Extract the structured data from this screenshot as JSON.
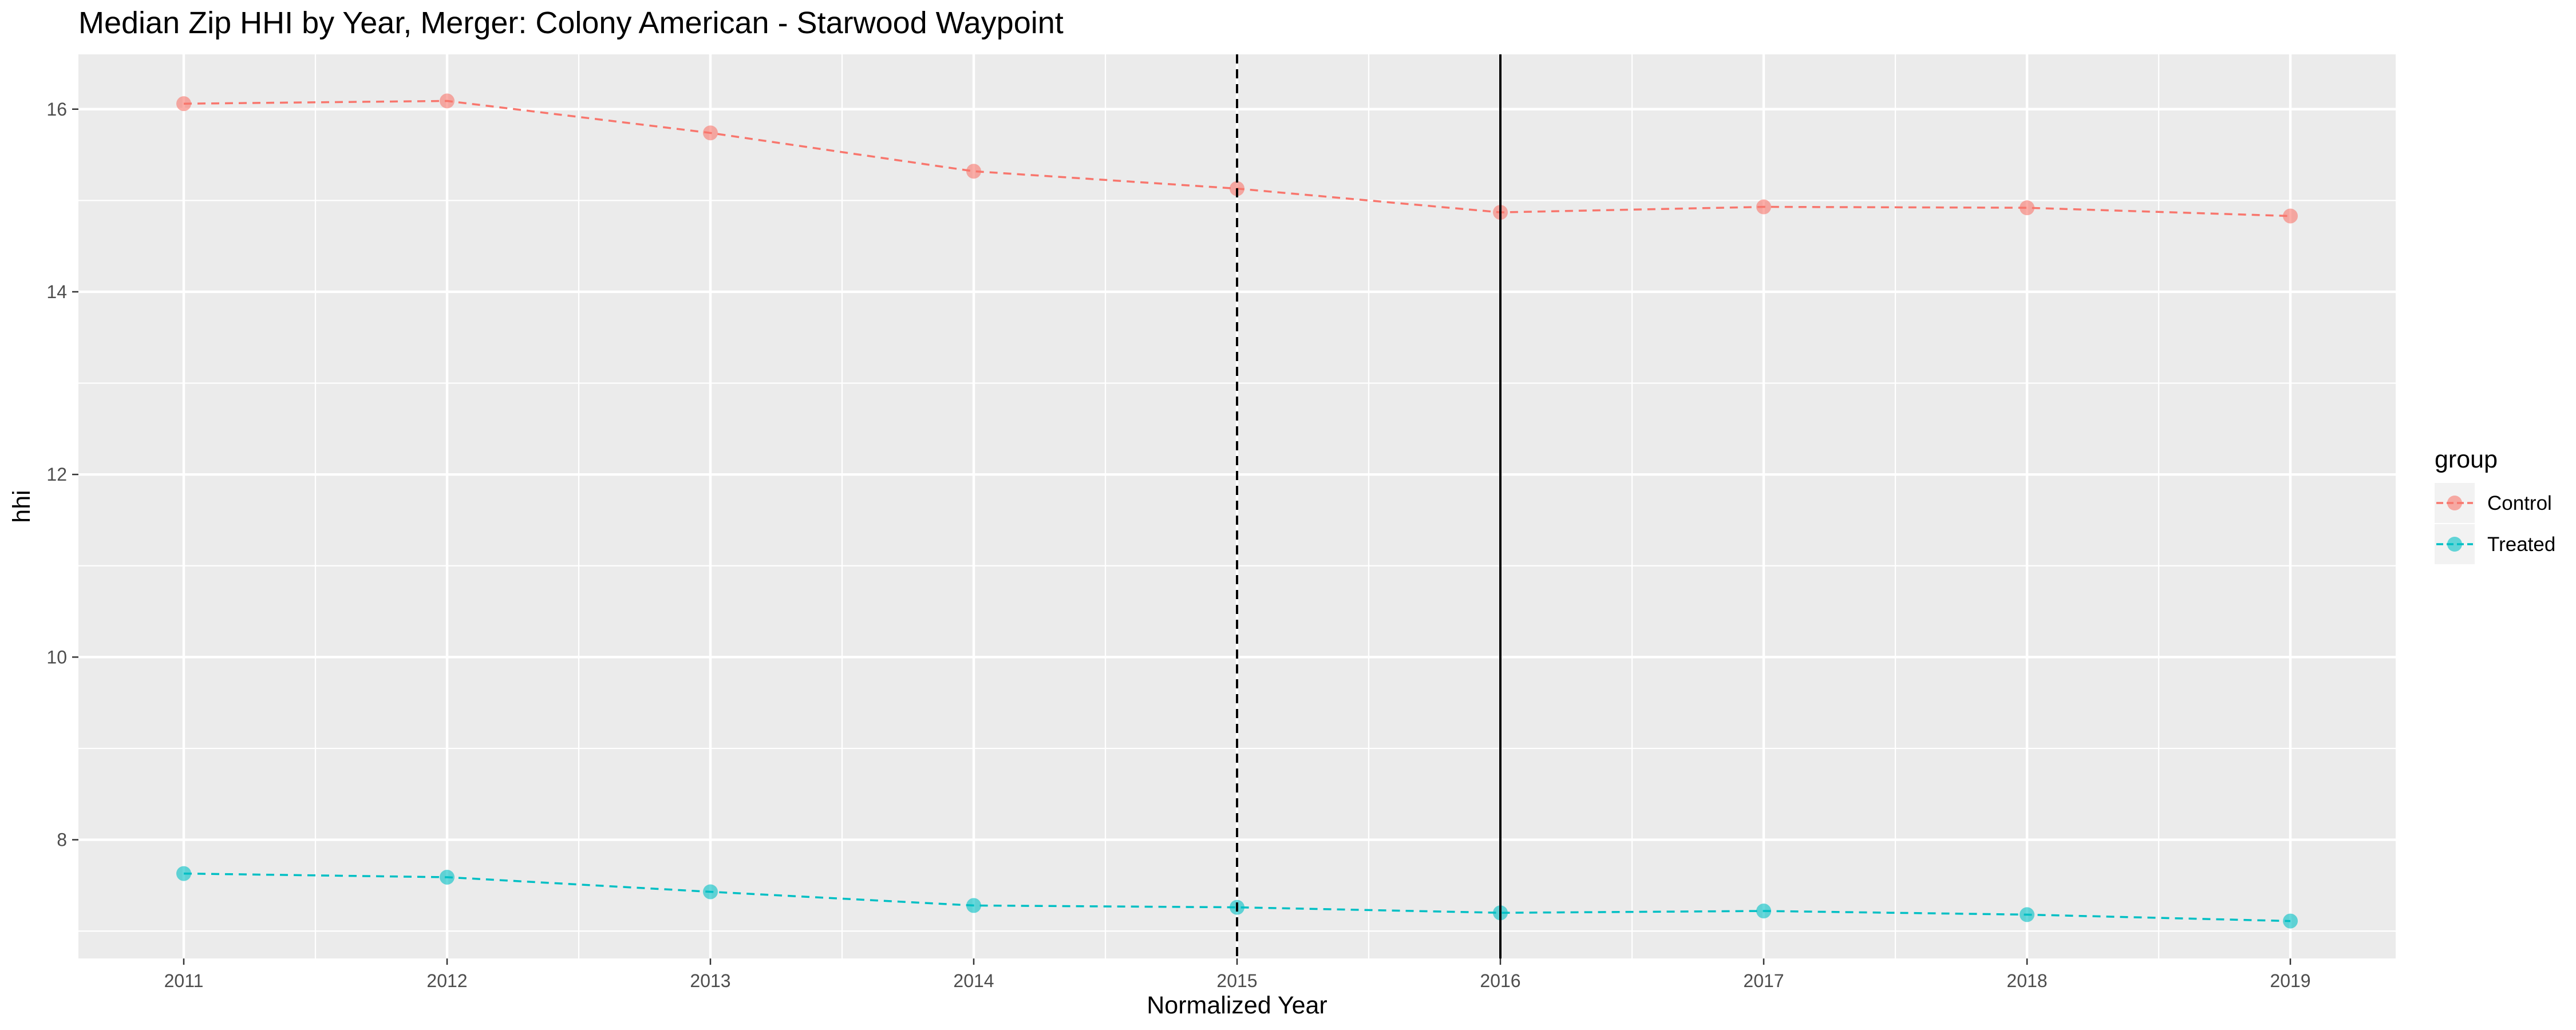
{
  "chart_data": {
    "type": "line",
    "title": "Median Zip HHI by Year, Merger: Colony American - Starwood Waypoint",
    "xlabel": "Normalized Year",
    "ylabel": "hhi",
    "x": [
      2011,
      2012,
      2013,
      2014,
      2015,
      2016,
      2017,
      2018,
      2019
    ],
    "xlim": [
      2010.6,
      2019.4
    ],
    "ylim": [
      6.7,
      16.6
    ],
    "x_ticks": [
      "2011",
      "2012",
      "2013",
      "2014",
      "2015",
      "2016",
      "2017",
      "2018",
      "2019"
    ],
    "y_ticks": [
      "8",
      "10",
      "12",
      "14",
      "16"
    ],
    "y_tick_values": [
      8,
      10,
      12,
      14,
      16
    ],
    "y_minor_grid": [
      7,
      9,
      11,
      13,
      15
    ],
    "grid": true,
    "legend": {
      "title": "group",
      "position": "right"
    },
    "series": [
      {
        "name": "Control",
        "color": "#F8766D",
        "values": [
          16.06,
          16.09,
          15.74,
          15.32,
          15.13,
          14.87,
          14.93,
          14.92,
          14.83
        ]
      },
      {
        "name": "Treated",
        "color": "#00BFC4",
        "values": [
          7.63,
          7.59,
          7.43,
          7.28,
          7.26,
          7.2,
          7.22,
          7.18,
          7.11
        ]
      }
    ],
    "vlines": [
      {
        "x": 2015,
        "style": "dashed"
      },
      {
        "x": 2016,
        "style": "solid"
      }
    ]
  }
}
